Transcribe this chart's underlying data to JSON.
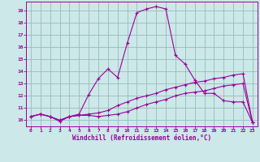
{
  "xlabel": "Windchill (Refroidissement éolien,°C)",
  "background_color": "#cce8e8",
  "line_color": "#990099",
  "grid_color": "#99bbbb",
  "xlim_min": -0.5,
  "xlim_max": 23.5,
  "ylim_min": 9.5,
  "ylim_max": 19.7,
  "xticks": [
    0,
    1,
    2,
    3,
    4,
    5,
    6,
    7,
    8,
    9,
    10,
    11,
    12,
    13,
    14,
    15,
    16,
    17,
    18,
    19,
    20,
    21,
    22,
    23
  ],
  "yticks": [
    10,
    11,
    12,
    13,
    14,
    15,
    16,
    17,
    18,
    19
  ],
  "line1_x": [
    0,
    1,
    2,
    3,
    4,
    5,
    6,
    7,
    8,
    9,
    10,
    11,
    12,
    13,
    14,
    15,
    16,
    17,
    18,
    19,
    20,
    21,
    22,
    23
  ],
  "line1_y": [
    10.3,
    10.5,
    10.3,
    10.0,
    10.3,
    10.4,
    10.4,
    10.3,
    10.4,
    10.5,
    10.7,
    11.0,
    11.3,
    11.5,
    11.7,
    12.0,
    12.2,
    12.3,
    12.4,
    12.6,
    12.8,
    12.9,
    13.0,
    9.8
  ],
  "line2_x": [
    0,
    1,
    2,
    3,
    4,
    5,
    6,
    7,
    8,
    9,
    10,
    11,
    12,
    13,
    14,
    15,
    16,
    17,
    18,
    19,
    20,
    21,
    22,
    23
  ],
  "line2_y": [
    10.3,
    10.5,
    10.3,
    10.0,
    10.3,
    10.5,
    12.1,
    13.4,
    14.2,
    13.5,
    16.3,
    18.8,
    19.1,
    19.3,
    19.1,
    15.3,
    14.6,
    13.3,
    12.2,
    12.2,
    11.6,
    11.5,
    11.5,
    9.8
  ],
  "line3_x": [
    0,
    1,
    2,
    3,
    4,
    5,
    6,
    7,
    8,
    9,
    10,
    11,
    12,
    13,
    14,
    15,
    16,
    17,
    18,
    19,
    20,
    21,
    22,
    23
  ],
  "line3_y": [
    10.3,
    10.5,
    10.3,
    9.9,
    10.3,
    10.4,
    10.5,
    10.6,
    10.8,
    11.2,
    11.5,
    11.8,
    12.0,
    12.2,
    12.5,
    12.7,
    12.9,
    13.1,
    13.2,
    13.4,
    13.5,
    13.7,
    13.8,
    9.8
  ]
}
